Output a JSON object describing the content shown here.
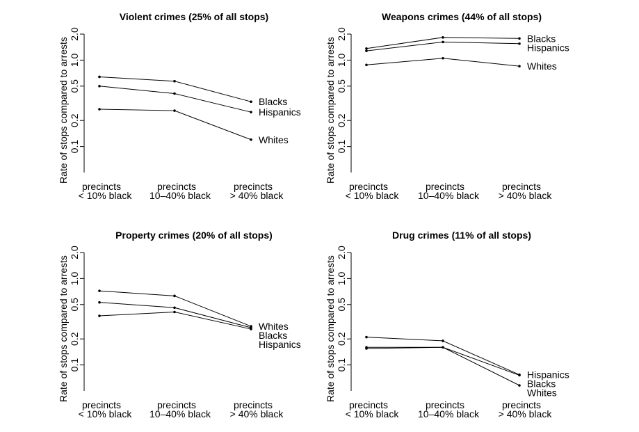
{
  "chart_data": [
    {
      "type": "line",
      "title": "Violent crimes (25% of all stops)",
      "ylabel": "Rate of stops compared to arrests",
      "yscale": "log",
      "ylim": [
        0.05,
        2.0
      ],
      "yticks": [
        "0.1",
        "0.2",
        "0.5",
        "1.0",
        "2.0"
      ],
      "categories": [
        [
          "precincts",
          "< 10% black"
        ],
        [
          "precincts",
          "10–40% black"
        ],
        [
          "precincts",
          "> 40% black"
        ]
      ],
      "series": [
        {
          "name": "Blacks",
          "values": [
            0.64,
            0.57,
            0.33
          ]
        },
        {
          "name": "Hispanics",
          "values": [
            0.5,
            0.41,
            0.25
          ]
        },
        {
          "name": "Whites",
          "values": [
            0.27,
            0.26,
            0.12
          ]
        }
      ]
    },
    {
      "type": "line",
      "title": "Weapons crimes (44% of all stops)",
      "ylabel": "Rate of stops compared to arrests",
      "yscale": "log",
      "ylim": [
        0.05,
        2.0
      ],
      "yticks": [
        "0.1",
        "0.2",
        "0.5",
        "1.0",
        "2.0"
      ],
      "categories": [
        [
          "precincts",
          "< 10% black"
        ],
        [
          "precincts",
          "10–40% black"
        ],
        [
          "precincts",
          "> 40% black"
        ]
      ],
      "series": [
        {
          "name": "Blacks",
          "values": [
            1.36,
            1.83,
            1.78
          ]
        },
        {
          "name": "Hispanics",
          "values": [
            1.28,
            1.62,
            1.55
          ]
        },
        {
          "name": "Whites",
          "values": [
            0.88,
            1.05,
            0.85
          ]
        }
      ]
    },
    {
      "type": "line",
      "title": "Property crimes (20% of all stops)",
      "ylabel": "Rate of stops compared to arrests",
      "yscale": "log",
      "ylim": [
        0.05,
        2.0
      ],
      "yticks": [
        "0.1",
        "0.2",
        "0.5",
        "1.0",
        "2.0"
      ],
      "categories": [
        [
          "precincts",
          "< 10% black"
        ],
        [
          "precincts",
          "10–40% black"
        ],
        [
          "precincts",
          "> 40% black"
        ]
      ],
      "series": [
        {
          "name": "Whites",
          "values": [
            0.72,
            0.63,
            0.28
          ]
        },
        {
          "name": "Blacks",
          "values": [
            0.53,
            0.46,
            0.27
          ]
        },
        {
          "name": "Hispanics",
          "values": [
            0.37,
            0.41,
            0.26
          ]
        }
      ]
    },
    {
      "type": "line",
      "title": "Drug crimes (11% of all stops)",
      "ylabel": "Rate of stops compared to arrests",
      "yscale": "log",
      "ylim": [
        0.05,
        2.0
      ],
      "yticks": [
        "0.1",
        "0.2",
        "0.5",
        "1.0",
        "2.0"
      ],
      "categories": [
        [
          "precincts",
          "< 10% black"
        ],
        [
          "precincts",
          "10–40% black"
        ],
        [
          "precincts",
          "> 40% black"
        ]
      ],
      "series": [
        {
          "name": "Hispanics",
          "values": [
            0.21,
            0.19,
            0.077
          ]
        },
        {
          "name": "Blacks",
          "values": [
            0.16,
            0.16,
            0.076
          ]
        },
        {
          "name": "Whites",
          "values": [
            0.155,
            0.16,
            0.058
          ]
        }
      ]
    }
  ]
}
